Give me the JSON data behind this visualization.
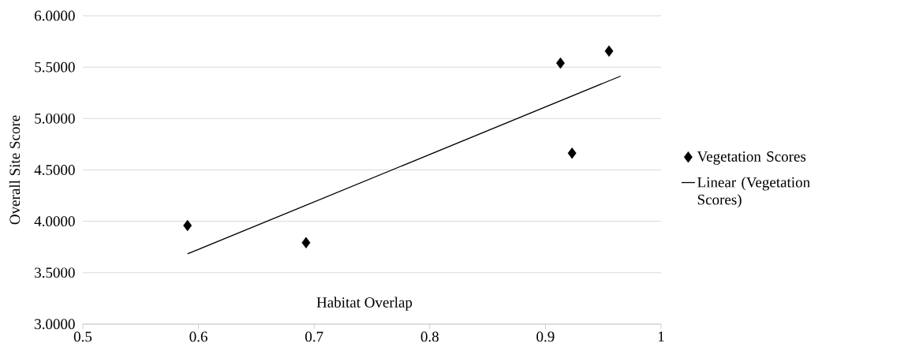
{
  "chart_data": {
    "type": "scatter",
    "xlabel": "Habitat Overlap",
    "ylabel": "Overall Site Score",
    "series": [
      {
        "name": "Vegetation Scores",
        "color": "#000000",
        "marker": "diamond",
        "x": [
          0.5905,
          0.693,
          0.913,
          0.923,
          0.955
        ],
        "values": [
          3.959,
          3.792,
          5.539,
          4.663,
          5.656
        ]
      },
      {
        "name": "Linear (Vegetation Scores)",
        "type": "line",
        "color": "#000000",
        "marker": "none",
        "line_style": "solid",
        "x": [
          0.5905,
          0.965
        ],
        "values": [
          3.683,
          5.413
        ]
      }
    ],
    "xlim": [
      0.5,
      1
    ],
    "xticks": [
      0.5,
      0.6,
      0.7,
      0.8,
      0.9,
      1
    ],
    "ylim": [
      3,
      6
    ],
    "yticks": [
      {
        "value": 3,
        "label": "3.0000"
      },
      {
        "value": 3.5,
        "label": "3.5000"
      },
      {
        "value": 4,
        "label": "4.0000"
      },
      {
        "value": 4.5,
        "label": "4.5000"
      },
      {
        "value": 5,
        "label": "5.0000"
      },
      {
        "value": 5.5,
        "label": "5.5000"
      },
      {
        "value": 6,
        "label": "6.0000"
      }
    ],
    "grid": "y",
    "legend": "right"
  }
}
